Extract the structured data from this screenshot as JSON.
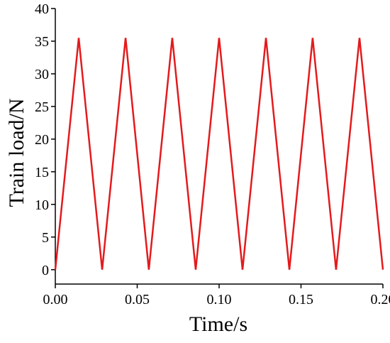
{
  "chart_data": {
    "type": "line",
    "title": "",
    "xlabel": "Time/s",
    "ylabel": "Train load/N",
    "xlim": [
      0.0,
      0.2
    ],
    "ylim": [
      -2.2,
      40.0
    ],
    "xticks": [
      0.0,
      0.05,
      0.1,
      0.15,
      0.2
    ],
    "xtick_labels": [
      "0.00",
      "0.05",
      "0.10",
      "0.15",
      "0.20"
    ],
    "yticks": [
      0,
      5,
      10,
      15,
      20,
      25,
      30,
      35,
      40
    ],
    "ytick_labels": [
      "0",
      "5",
      "10",
      "15",
      "20",
      "25",
      "30",
      "35",
      "40"
    ],
    "grid": false,
    "series": [
      {
        "color": "#e41a1c",
        "x": [
          0.0,
          0.0143,
          0.0286,
          0.0429,
          0.0571,
          0.0714,
          0.0857,
          0.1,
          0.1143,
          0.1286,
          0.1429,
          0.1571,
          0.1714,
          0.1857,
          0.2
        ],
        "y": [
          0,
          35.5,
          0,
          35.5,
          0,
          35.5,
          0,
          35.5,
          0,
          35.5,
          0,
          35.5,
          0,
          35.5,
          0
        ]
      }
    ]
  }
}
